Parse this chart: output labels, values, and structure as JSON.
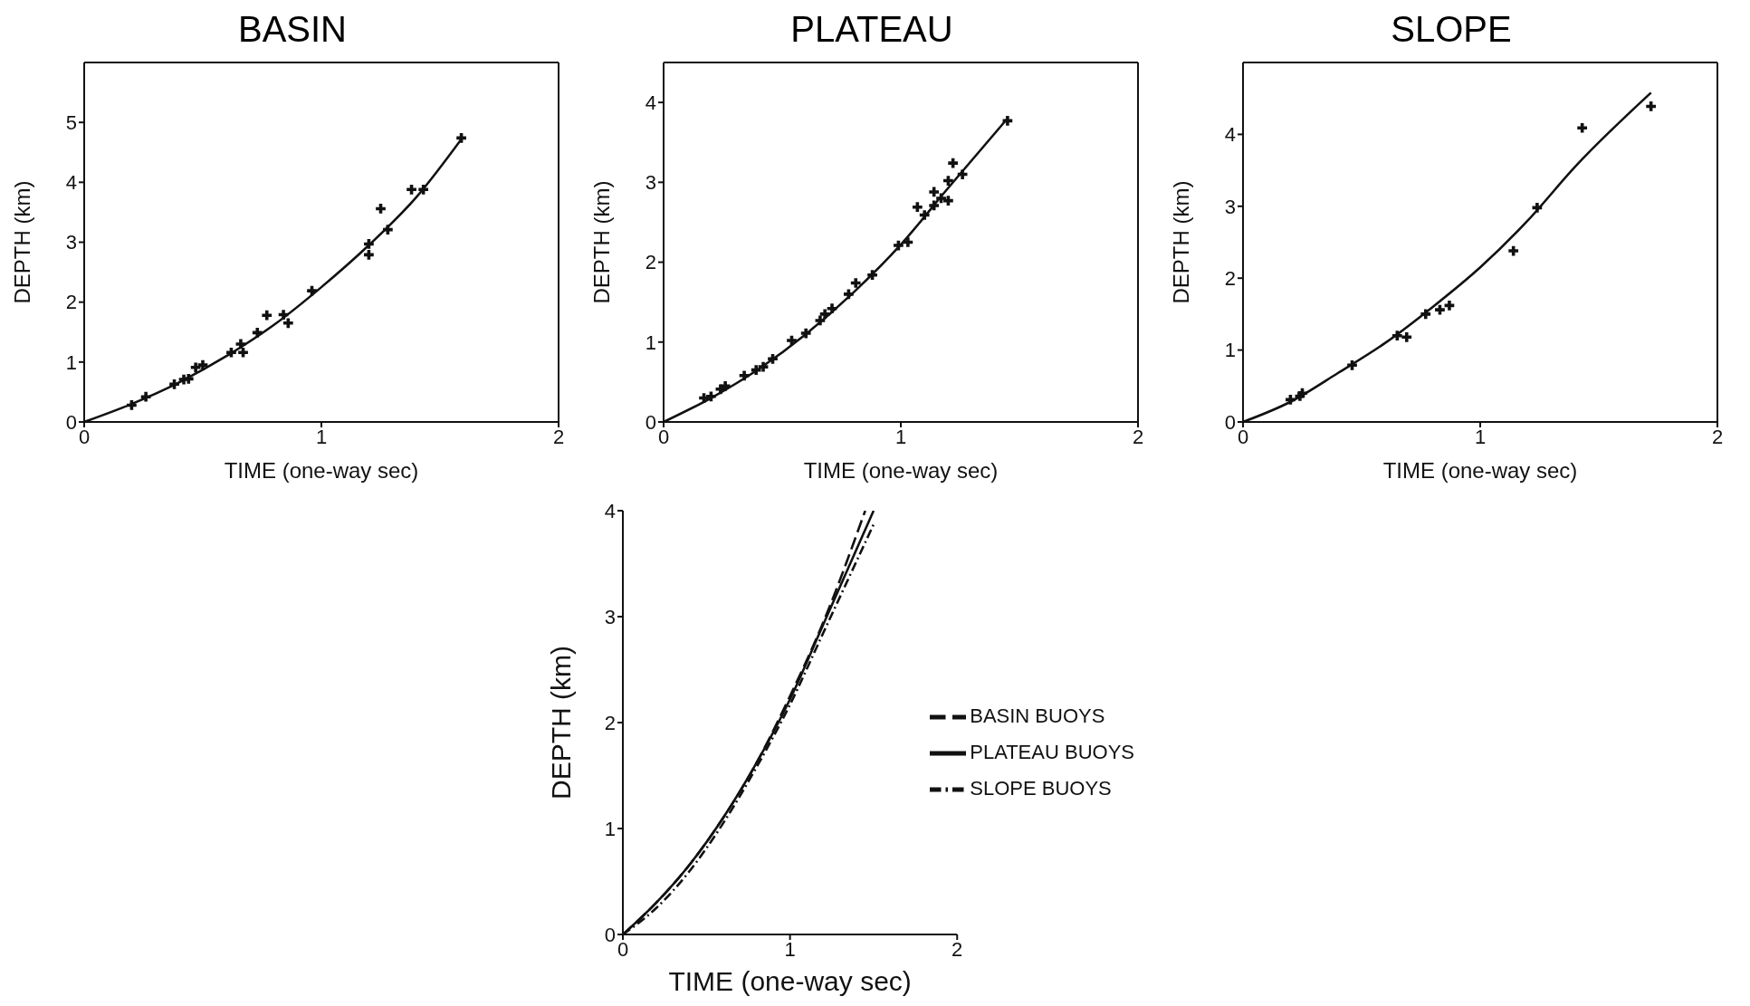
{
  "chart_data": [
    {
      "type": "scatter",
      "title": "BASIN",
      "xlabel": "TIME (one-way sec)",
      "ylabel": "DEPTH (km)",
      "xlim": [
        0,
        2
      ],
      "xticks": [
        0,
        1,
        2
      ],
      "ylim": [
        0,
        6
      ],
      "yticks": [
        0,
        1,
        2,
        3,
        4,
        5
      ],
      "legend": false,
      "series": [
        {
          "marker": "cross",
          "color": "#111111",
          "x": [
            0.2,
            0.26,
            0.38,
            0.42,
            0.44,
            0.47,
            0.5,
            0.62,
            0.66,
            0.67,
            0.73,
            0.77,
            0.84,
            0.86,
            0.96,
            1.2,
            1.2,
            1.25,
            1.28,
            1.38,
            1.43,
            1.59
          ],
          "values": [
            0.28,
            0.42,
            0.63,
            0.71,
            0.72,
            0.91,
            0.95,
            1.16,
            1.3,
            1.16,
            1.49,
            1.78,
            1.79,
            1.65,
            2.19,
            2.97,
            2.79,
            3.56,
            3.21,
            3.88,
            3.88,
            4.74
          ]
        },
        {
          "type": "line",
          "color": "#111111",
          "line_style": "solid",
          "x": [
            0,
            0.2,
            0.4,
            0.6,
            0.8,
            1.0,
            1.2,
            1.4,
            1.59
          ],
          "values": [
            0,
            0.3,
            0.66,
            1.1,
            1.62,
            2.25,
            2.95,
            3.75,
            4.72
          ]
        }
      ]
    },
    {
      "type": "scatter",
      "title": "PLATEAU",
      "xlabel": "TIME (one-way sec)",
      "ylabel": "DEPTH (km)",
      "xlim": [
        0,
        2
      ],
      "xticks": [
        0,
        1,
        2
      ],
      "ylim": [
        0,
        4.5
      ],
      "yticks": [
        0,
        1,
        2,
        3,
        4
      ],
      "legend": false,
      "series": [
        {
          "marker": "cross",
          "color": "#111111",
          "x": [
            0.17,
            0.2,
            0.24,
            0.26,
            0.34,
            0.39,
            0.42,
            0.46,
            0.54,
            0.6,
            0.66,
            0.68,
            0.71,
            0.78,
            0.81,
            0.88,
            0.99,
            1.03,
            1.07,
            1.1,
            1.14,
            1.14,
            1.17,
            1.2,
            1.2,
            1.22,
            1.26,
            1.45
          ],
          "values": [
            0.3,
            0.32,
            0.41,
            0.45,
            0.58,
            0.65,
            0.69,
            0.79,
            1.02,
            1.11,
            1.27,
            1.35,
            1.42,
            1.6,
            1.74,
            1.84,
            2.21,
            2.25,
            2.69,
            2.59,
            2.88,
            2.71,
            2.8,
            3.02,
            2.77,
            3.24,
            3.1,
            3.77
          ]
        },
        {
          "type": "line",
          "color": "#111111",
          "line_style": "solid",
          "x": [
            0,
            0.2,
            0.4,
            0.6,
            0.8,
            1.0,
            1.2,
            1.45
          ],
          "values": [
            0,
            0.3,
            0.66,
            1.1,
            1.62,
            2.22,
            2.93,
            3.8
          ]
        }
      ]
    },
    {
      "type": "scatter",
      "title": "SLOPE",
      "xlabel": "TIME (one-way sec)",
      "ylabel": "DEPTH (km)",
      "xlim": [
        0,
        2
      ],
      "xticks": [
        0,
        1,
        2
      ],
      "ylim": [
        0,
        5
      ],
      "yticks": [
        0,
        1,
        2,
        3,
        4
      ],
      "legend": false,
      "series": [
        {
          "marker": "cross",
          "color": "#111111",
          "x": [
            0.2,
            0.24,
            0.25,
            0.46,
            0.65,
            0.69,
            0.77,
            0.83,
            0.87,
            1.14,
            1.24,
            1.43,
            1.72
          ],
          "values": [
            0.31,
            0.36,
            0.4,
            0.79,
            1.2,
            1.18,
            1.5,
            1.56,
            1.62,
            2.38,
            2.98,
            4.09,
            4.39
          ]
        },
        {
          "type": "line",
          "color": "#111111",
          "line_style": "solid",
          "x": [
            0,
            0.2,
            0.4,
            0.6,
            0.8,
            1.0,
            1.2,
            1.4,
            1.72
          ],
          "values": [
            0,
            0.28,
            0.68,
            1.1,
            1.6,
            2.15,
            2.8,
            3.55,
            4.58
          ]
        }
      ]
    },
    {
      "type": "line",
      "xlabel": "TIME (one-way sec)",
      "ylabel": "DEPTH (km)",
      "xlim": [
        0,
        2
      ],
      "xticks": [
        0,
        1,
        2
      ],
      "ylim": [
        0,
        4
      ],
      "yticks": [
        0,
        1,
        2,
        3,
        4
      ],
      "legend": "right",
      "series": [
        {
          "name": "BASIN BUOYS",
          "color": "#111111",
          "line_style": "dashed",
          "x": [
            0,
            0.2,
            0.4,
            0.6,
            0.8,
            1.0,
            1.2,
            1.45
          ],
          "values": [
            0,
            0.3,
            0.66,
            1.1,
            1.62,
            2.25,
            2.95,
            4.0
          ]
        },
        {
          "name": "PLATEAU BUOYS",
          "color": "#111111",
          "line_style": "solid",
          "x": [
            0,
            0.2,
            0.4,
            0.6,
            0.8,
            1.0,
            1.2,
            1.5
          ],
          "values": [
            0,
            0.3,
            0.66,
            1.1,
            1.62,
            2.22,
            2.93,
            4.0
          ]
        },
        {
          "name": "SLOPE BUOYS",
          "color": "#111111",
          "line_style": "dashdot",
          "x": [
            0,
            0.2,
            0.4,
            0.6,
            0.8,
            1.0,
            1.2,
            1.5
          ],
          "values": [
            0,
            0.25,
            0.6,
            1.05,
            1.58,
            2.17,
            2.85,
            3.87
          ]
        }
      ]
    }
  ]
}
